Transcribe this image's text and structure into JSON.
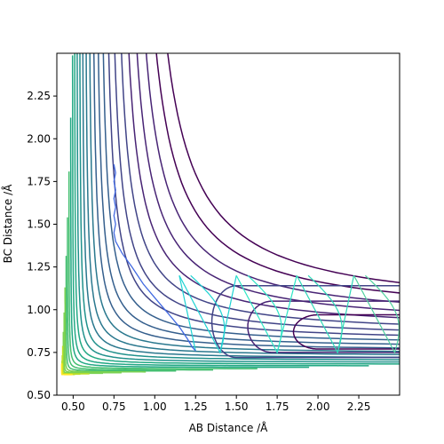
{
  "chart_data": {
    "type": "contour",
    "xlabel": "AB Distance /Å",
    "ylabel": "BC Distance /Å",
    "xlim": [
      0.4,
      2.5
    ],
    "ylim": [
      0.5,
      2.5
    ],
    "xticks": [
      "0.50",
      "0.75",
      "1.00",
      "1.25",
      "1.50",
      "1.75",
      "2.00",
      "2.25"
    ],
    "yticks": [
      "0.50",
      "0.75",
      "1.00",
      "1.25",
      "1.50",
      "1.75",
      "2.00",
      "2.25"
    ],
    "xtick_values": [
      0.5,
      0.75,
      1.0,
      1.25,
      1.5,
      1.75,
      2.0,
      2.25
    ],
    "ytick_values": [
      0.5,
      0.75,
      1.0,
      1.25,
      1.5,
      1.75,
      2.0,
      2.25
    ],
    "grid": false,
    "colormap": "viridis",
    "contour_colors": [
      "#440154",
      "#482475",
      "#414487",
      "#355f8d",
      "#2a788e",
      "#21918c",
      "#22a884",
      "#44bf70",
      "#7ad151",
      "#bddf26",
      "#fde725"
    ],
    "trajectory_color": "#4169e1",
    "oscillation_colors": [
      "#1fd3d3",
      "#2ee6c6",
      "#2ed8b8",
      "#52d0a0"
    ],
    "trajectory": [
      [
        0.75,
        1.85
      ],
      [
        0.76,
        1.8
      ],
      [
        0.75,
        1.75
      ],
      [
        0.76,
        1.7
      ],
      [
        0.75,
        1.65
      ],
      [
        0.76,
        1.6
      ],
      [
        0.75,
        1.55
      ],
      [
        0.76,
        1.5
      ],
      [
        0.75,
        1.45
      ],
      [
        0.76,
        1.4
      ],
      [
        0.8,
        1.33
      ],
      [
        0.86,
        1.25
      ],
      [
        0.93,
        1.15
      ],
      [
        1.0,
        1.07
      ],
      [
        1.08,
        0.98
      ],
      [
        1.15,
        0.9
      ],
      [
        1.2,
        0.83
      ],
      [
        1.23,
        0.78
      ],
      [
        1.25,
        0.76
      ]
    ]
  }
}
